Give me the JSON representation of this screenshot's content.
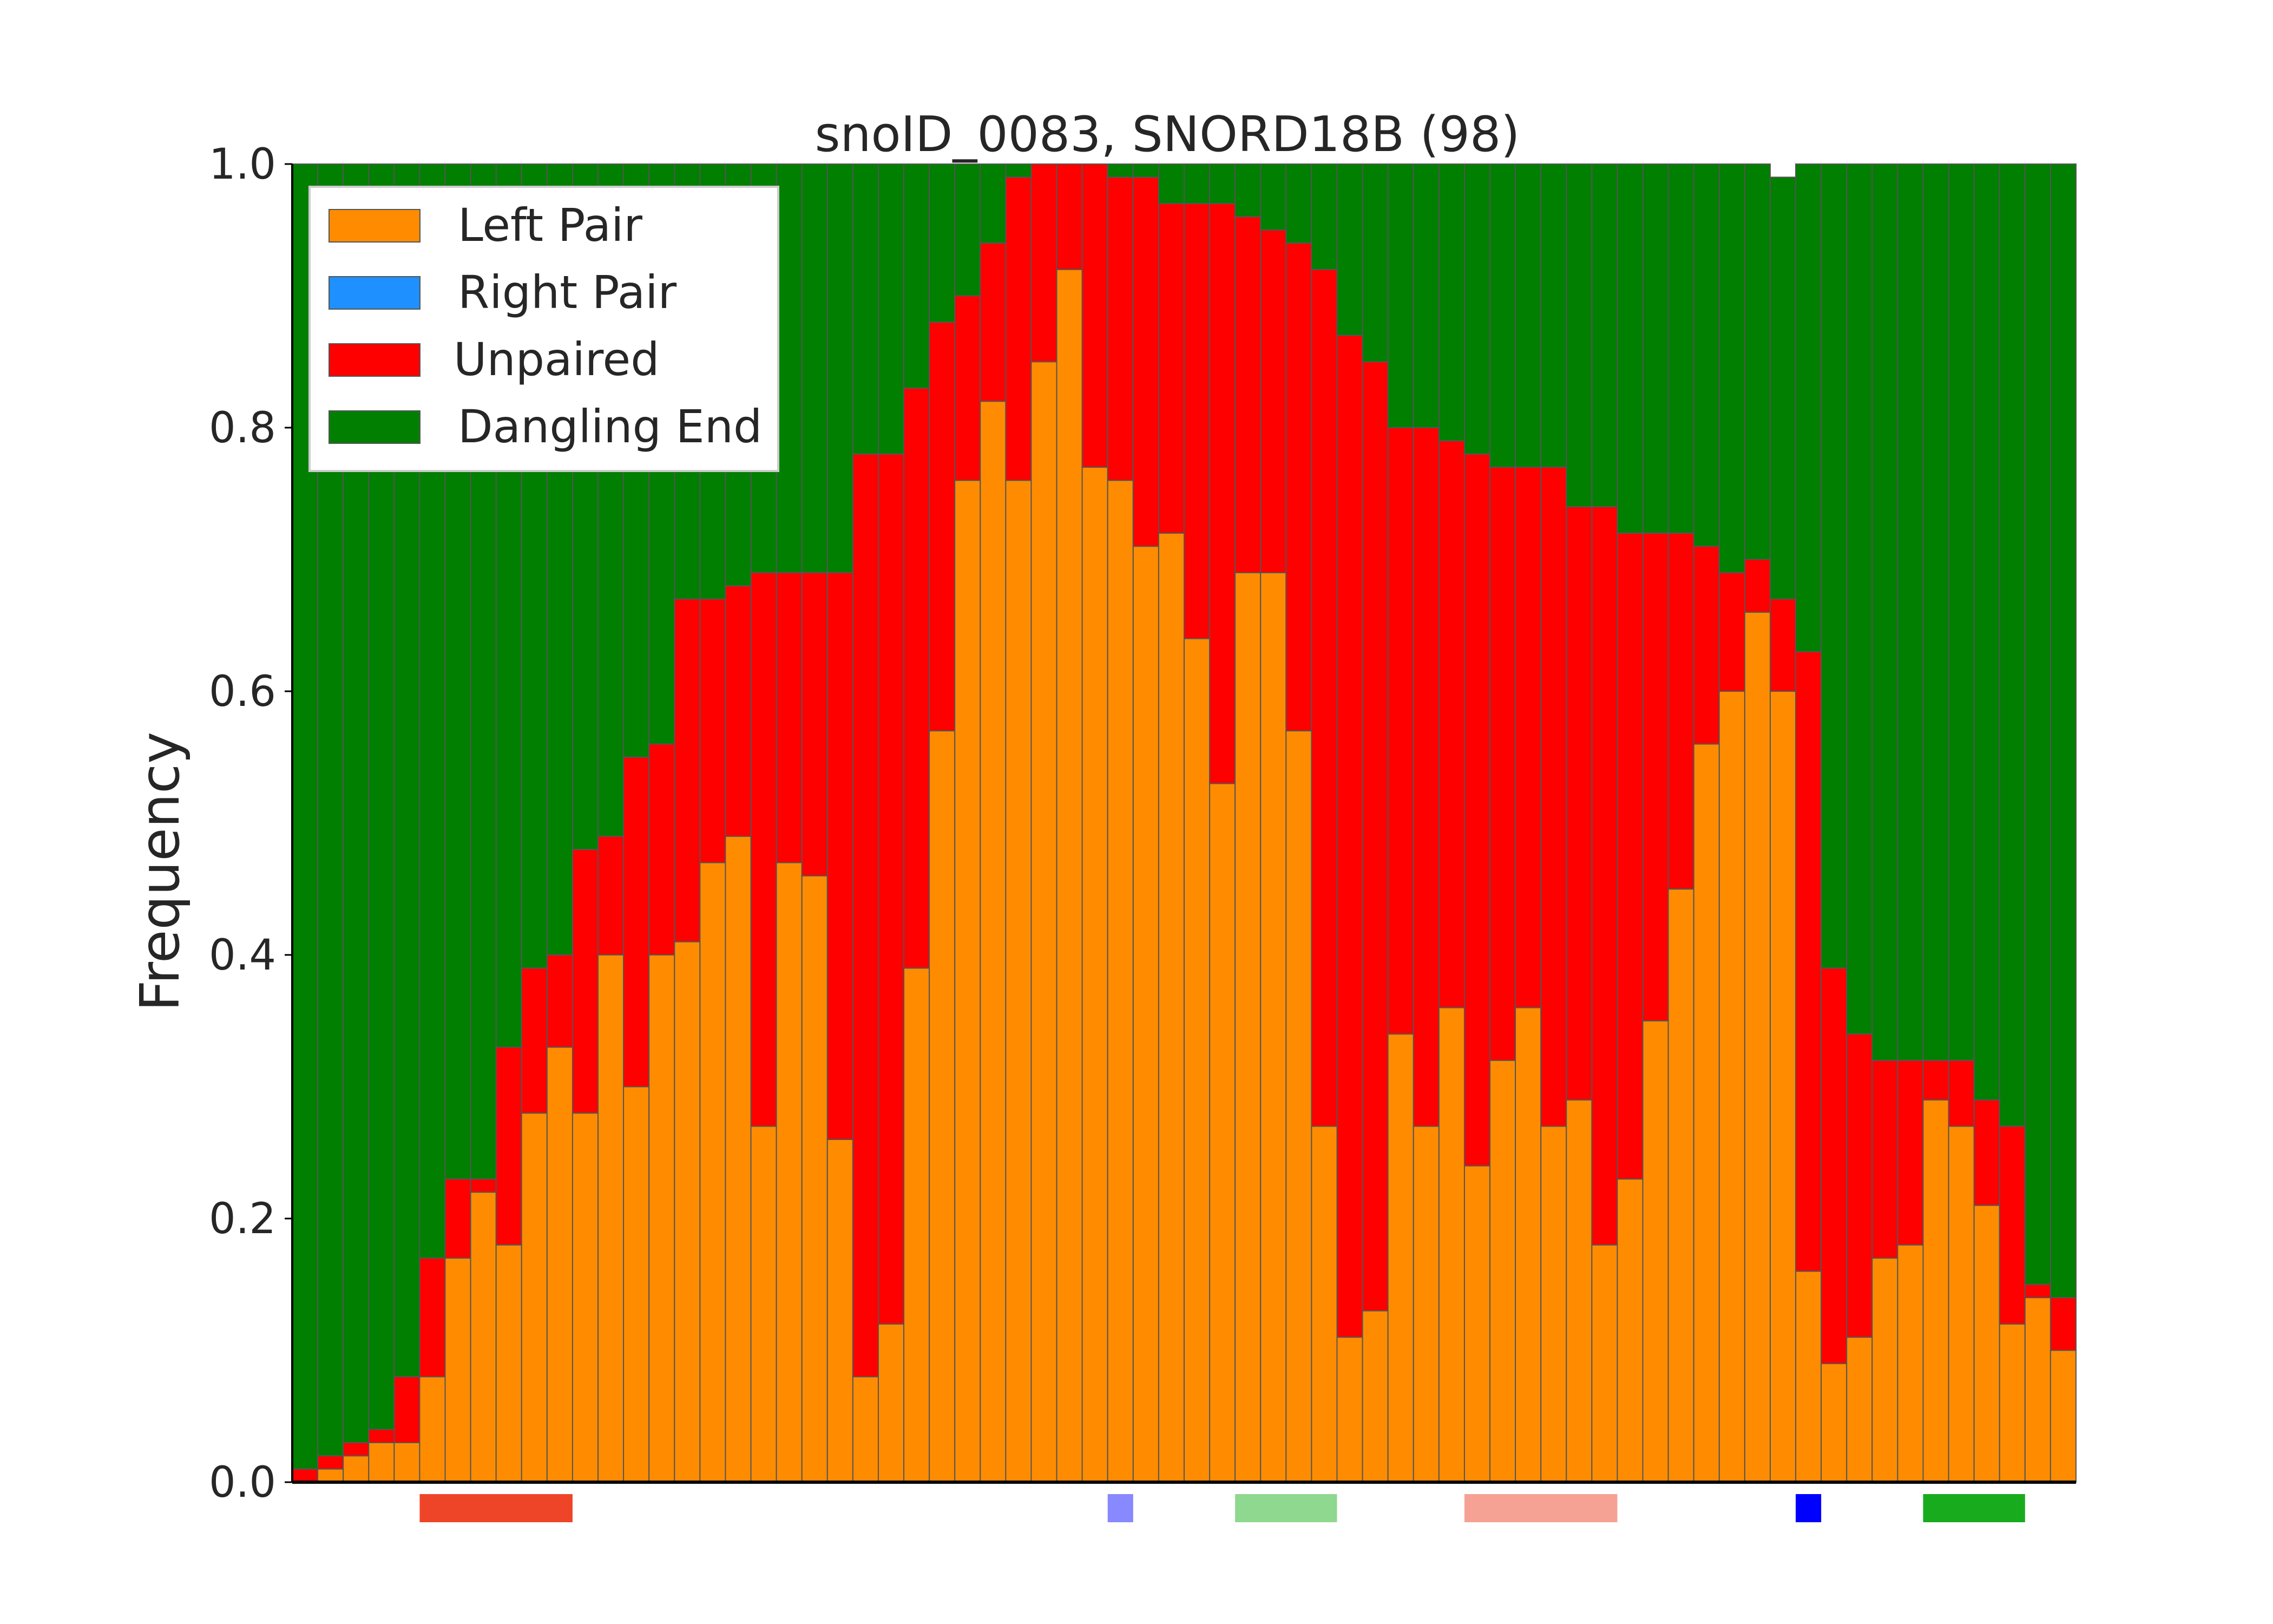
{
  "chart_data": {
    "type": "bar",
    "stacked": true,
    "title": "snoID_0083, SNORD18B (98)",
    "xlabel": "",
    "ylabel": "Frequency",
    "ylim": [
      0,
      1
    ],
    "yticks": [
      "0.0",
      "0.2",
      "0.4",
      "0.6",
      "0.8",
      "1.0"
    ],
    "grid": false,
    "legend_position": "top-left",
    "num_positions": 70,
    "series": [
      {
        "name": "Left Pair",
        "color": "#ff8c00",
        "values": [
          0,
          0.01,
          0.02,
          0.03,
          0.03,
          0.08,
          0.17,
          0.22,
          0.18,
          0.28,
          0.33,
          0.28,
          0.4,
          0.3,
          0.4,
          0.41,
          0.47,
          0.49,
          0.27,
          0.47,
          0.46,
          0.26,
          0.08,
          0.12,
          0.39,
          0.57,
          0.76,
          0.82,
          0.76,
          0.85,
          0.92,
          0.77,
          0.76,
          0.71,
          0.72,
          0.64,
          0.53,
          0.69,
          0.69,
          0.57,
          0.27,
          0.11,
          0.13,
          0.34,
          0.27,
          0.36,
          0.24,
          0.32,
          0.36,
          0.27,
          0.29,
          0.18,
          0.23,
          0.35,
          0.45,
          0.56,
          0.6,
          0.66,
          0.6,
          0.16,
          0.09,
          0.11,
          0.17,
          0.18,
          0.29,
          0.27,
          0.21,
          0.12,
          0.14,
          0.1
        ]
      },
      {
        "name": "Right Pair",
        "color": "#1e90ff",
        "values": [
          0,
          0,
          0,
          0,
          0,
          0,
          0,
          0,
          0,
          0,
          0,
          0,
          0,
          0,
          0,
          0,
          0,
          0,
          0,
          0,
          0,
          0,
          0,
          0,
          0,
          0,
          0,
          0,
          0,
          0,
          0,
          0,
          0,
          0,
          0,
          0,
          0,
          0,
          0,
          0,
          0,
          0,
          0,
          0,
          0,
          0,
          0,
          0,
          0,
          0,
          0,
          0,
          0,
          0,
          0,
          0,
          0,
          0,
          0,
          0,
          0,
          0,
          0,
          0,
          0,
          0,
          0,
          0,
          0,
          0
        ]
      },
      {
        "name": "Unpaired",
        "color": "#ff0000",
        "values": [
          0.01,
          0.01,
          0.01,
          0.01,
          0.05,
          0.09,
          0.06,
          0.01,
          0.15,
          0.11,
          0.07,
          0.2,
          0.09,
          0.25,
          0.16,
          0.26,
          0.2,
          0.19,
          0.42,
          0.22,
          0.23,
          0.43,
          0.7,
          0.66,
          0.44,
          0.31,
          0.14,
          0.12,
          0.23,
          0.15,
          0.08,
          0.23,
          0.23,
          0.28,
          0.25,
          0.33,
          0.44,
          0.27,
          0.26,
          0.37,
          0.65,
          0.76,
          0.72,
          0.46,
          0.53,
          0.43,
          0.54,
          0.45,
          0.41,
          0.5,
          0.45,
          0.56,
          0.49,
          0.37,
          0.27,
          0.15,
          0.09,
          0.04,
          0.07,
          0.47,
          0.3,
          0.23,
          0.15,
          0.14,
          0.03,
          0.05,
          0.08,
          0.15,
          0.01,
          0.04
        ]
      },
      {
        "name": "Dangling End",
        "color": "#007f00",
        "values": [
          0.99,
          0.98,
          0.97,
          0.96,
          0.92,
          0.83,
          0.77,
          0.77,
          0.67,
          0.61,
          0.6,
          0.52,
          0.51,
          0.45,
          0.44,
          0.33,
          0.33,
          0.32,
          0.31,
          0.31,
          0.31,
          0.31,
          0.22,
          0.22,
          0.17,
          0.12,
          0.1,
          0.06,
          0.01,
          0.0,
          0.0,
          0.0,
          0.01,
          0.01,
          0.03,
          0.03,
          0.03,
          0.04,
          0.05,
          0.06,
          0.08,
          0.13,
          0.15,
          0.2,
          0.2,
          0.21,
          0.22,
          0.23,
          0.23,
          0.23,
          0.26,
          0.26,
          0.28,
          0.28,
          0.28,
          0.29,
          0.31,
          0.3,
          0.32,
          0.37,
          0.61,
          0.66,
          0.68,
          0.68,
          0.68,
          0.68,
          0.71,
          0.73,
          0.85,
          0.86
        ]
      }
    ],
    "annotations": [
      {
        "name": "region-1",
        "start": 5,
        "end": 10,
        "color": "#ee4528"
      },
      {
        "name": "region-2",
        "start": 32,
        "end": 32,
        "color": "#8888ff"
      },
      {
        "name": "region-3",
        "start": 37,
        "end": 40,
        "color": "#8fd88f"
      },
      {
        "name": "region-4",
        "start": 46,
        "end": 51,
        "color": "#f5a294"
      },
      {
        "name": "region-5",
        "start": 59,
        "end": 59,
        "color": "#0000ff"
      },
      {
        "name": "region-6",
        "start": 64,
        "end": 67,
        "color": "#18ab1e"
      }
    ]
  }
}
